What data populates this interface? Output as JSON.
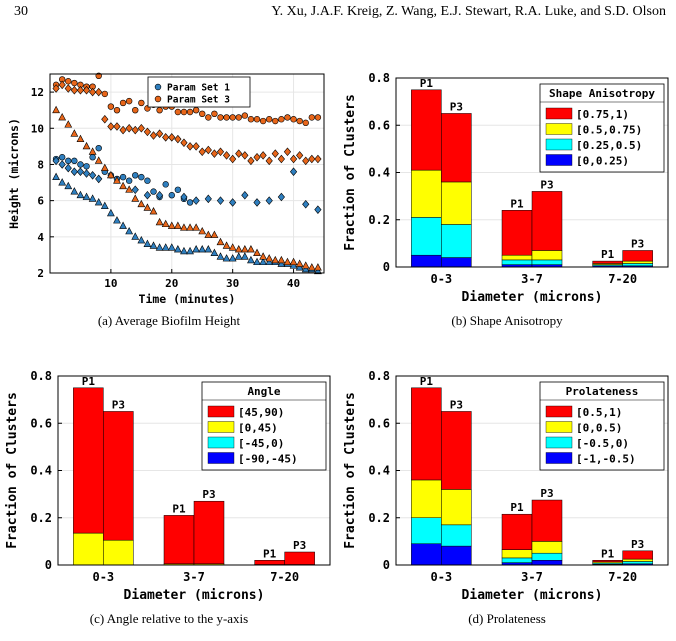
{
  "header": {
    "page_number": "30",
    "authors": "Y. Xu, J.A.F. Kreig, Z. Wang, E.J. Stewart, R.A. Luke, and S.D. Olson"
  },
  "captions": {
    "a": "(a) Average Biofilm Height",
    "b": "(b) Shape Anisotropy",
    "c": "(c) Angle relative to the y-axis",
    "d": "(d) Prolateness"
  },
  "colors": {
    "red": "#ff0000",
    "yellow": "#ffff00",
    "cyan": "#00ffff",
    "blue": "#0000ff",
    "param1": "#2f7fbf",
    "param3": "#e8661a"
  },
  "chart_data": [
    {
      "id": "a",
      "type": "scatter",
      "xlabel": "Time (minutes)",
      "ylabel": "Height (microns)",
      "xlim": [
        0,
        45
      ],
      "ylim": [
        2,
        13
      ],
      "xticks": [
        "10",
        "20",
        "30",
        "40"
      ],
      "yticks": [
        "2",
        "4",
        "6",
        "8",
        "10",
        "12"
      ],
      "legend": [
        "Param Set 1",
        "Param Set 3"
      ],
      "legend_position": "top-right",
      "grid": true,
      "series": [
        {
          "name": "Param Set 1",
          "marker": "circle",
          "color": "#2f7fbf",
          "x": [
            1,
            2,
            3,
            4,
            5,
            6,
            7,
            8,
            9,
            10,
            11,
            12,
            13,
            14,
            15,
            16,
            17,
            18,
            19,
            20,
            21,
            22,
            23
          ],
          "y": [
            8.3,
            8.4,
            8.2,
            8.2,
            8.0,
            7.9,
            8.4,
            8.9,
            7.6,
            7.4,
            7.2,
            7.3,
            7.1,
            7.4,
            7.3,
            7.1,
            6.5,
            6.2,
            6.9,
            6.3,
            6.6,
            6.1,
            5.9
          ]
        },
        {
          "name": "Param Set 1",
          "marker": "diamond",
          "color": "#2f7fbf",
          "x": [
            1,
            2,
            3,
            4,
            5,
            6,
            7,
            8,
            14,
            16,
            18,
            22,
            24,
            26,
            28,
            30,
            32,
            34,
            36,
            38,
            40,
            42,
            44
          ],
          "y": [
            8.2,
            8.0,
            7.8,
            7.6,
            7.6,
            7.5,
            7.4,
            7.2,
            6.6,
            6.3,
            6.3,
            6.2,
            6.0,
            6.1,
            6.0,
            5.9,
            6.3,
            5.9,
            6.0,
            6.2,
            7.6,
            5.8,
            5.5
          ]
        },
        {
          "name": "",
          "marker": "triangle",
          "color": "#2f7fbf",
          "x": [
            1,
            2,
            3,
            4,
            5,
            6,
            7,
            8,
            9,
            10,
            11,
            12,
            13,
            14,
            15,
            16,
            17,
            18,
            19,
            20,
            21,
            22,
            23,
            24,
            25,
            26,
            27,
            28,
            29,
            30,
            31,
            32,
            33,
            34,
            35,
            36,
            37,
            38,
            39,
            40,
            41,
            42,
            43,
            44
          ],
          "y": [
            7.3,
            7.0,
            6.8,
            6.5,
            6.3,
            6.2,
            6.1,
            5.9,
            5.7,
            5.3,
            4.9,
            4.6,
            4.3,
            4.0,
            3.8,
            3.6,
            3.5,
            3.4,
            3.4,
            3.4,
            3.3,
            3.2,
            3.2,
            3.3,
            3.3,
            3.3,
            3.1,
            2.9,
            2.8,
            2.8,
            2.9,
            2.9,
            2.7,
            2.6,
            2.6,
            2.6,
            2.6,
            2.5,
            2.5,
            2.4,
            2.3,
            2.2,
            2.2,
            2.1
          ]
        },
        {
          "name": "Param Set 3",
          "marker": "circle",
          "color": "#e8661a",
          "x": [
            1,
            2,
            3,
            4,
            5,
            6,
            7,
            8,
            9,
            10,
            11,
            12,
            13,
            14,
            15,
            16,
            17,
            18,
            19,
            20,
            21,
            22,
            23,
            24,
            25,
            26,
            27,
            28,
            29,
            30,
            31,
            32,
            33,
            34,
            35,
            36,
            37,
            38,
            39,
            40,
            41,
            42,
            43,
            44
          ],
          "y": [
            12.4,
            12.7,
            12.6,
            12.5,
            12.4,
            12.3,
            12.3,
            12.9,
            11.9,
            11.2,
            11.0,
            11.4,
            11.5,
            11.0,
            11.4,
            11.1,
            11.3,
            11.0,
            11.2,
            11.2,
            10.9,
            10.9,
            10.9,
            11.0,
            10.8,
            10.6,
            10.8,
            10.6,
            10.6,
            10.6,
            10.6,
            10.7,
            10.5,
            10.5,
            10.4,
            10.5,
            10.4,
            10.5,
            10.6,
            10.5,
            10.4,
            10.3,
            10.6,
            10.6
          ]
        },
        {
          "name": "Param Set 3",
          "marker": "diamond",
          "color": "#e8661a",
          "x": [
            1,
            2,
            3,
            4,
            5,
            6,
            7,
            8,
            9,
            10,
            11,
            12,
            13,
            14,
            15,
            16,
            17,
            18,
            19,
            20,
            21,
            22,
            23,
            24,
            25,
            26,
            27,
            28,
            29,
            30,
            31,
            32,
            33,
            34,
            35,
            36,
            37,
            38,
            39,
            40,
            41,
            42,
            43,
            44
          ],
          "y": [
            12.2,
            12.4,
            12.2,
            12.1,
            12.1,
            12.1,
            12.0,
            12.0,
            10.5,
            10.1,
            10.1,
            9.9,
            10.0,
            9.9,
            10.0,
            9.8,
            9.6,
            9.7,
            9.5,
            9.5,
            9.4,
            9.2,
            9.0,
            9.0,
            8.7,
            8.8,
            8.6,
            8.7,
            8.5,
            8.3,
            8.6,
            8.5,
            8.2,
            8.4,
            8.5,
            8.2,
            8.6,
            8.3,
            8.7,
            8.3,
            8.5,
            8.2,
            8.3,
            8.3
          ]
        },
        {
          "name": "",
          "marker": "triangle",
          "color": "#e8661a",
          "x": [
            1,
            2,
            3,
            4,
            5,
            6,
            7,
            8,
            9,
            10,
            11,
            12,
            13,
            14,
            15,
            16,
            17,
            18,
            19,
            20,
            21,
            22,
            23,
            24,
            25,
            26,
            27,
            28,
            29,
            30,
            31,
            32,
            33,
            34,
            35,
            36,
            37,
            38,
            39,
            40,
            41,
            42,
            43,
            44
          ],
          "y": [
            11.0,
            10.6,
            10.2,
            9.7,
            9.4,
            9.0,
            8.7,
            8.2,
            7.8,
            7.4,
            7.1,
            6.8,
            6.6,
            6.1,
            5.8,
            5.6,
            5.4,
            4.8,
            4.7,
            4.6,
            4.6,
            4.5,
            4.5,
            4.5,
            4.3,
            4.1,
            4.1,
            3.7,
            3.5,
            3.4,
            3.3,
            3.3,
            3.3,
            3.1,
            2.9,
            2.8,
            2.7,
            2.7,
            2.6,
            2.6,
            2.5,
            2.4,
            2.3,
            2.3
          ]
        }
      ]
    },
    {
      "id": "b",
      "type": "bar",
      "stacked": true,
      "xlabel": "Diameter (microns)",
      "ylabel": "Fraction of Clusters",
      "ylim": [
        0,
        0.8
      ],
      "yticks": [
        "0",
        "0.2",
        "0.4",
        "0.6",
        "0.8"
      ],
      "categories": [
        "0-3",
        "3-7",
        "7-20"
      ],
      "bar_labels": [
        "P1",
        "P3"
      ],
      "legend_title": "Shape Anisotropy",
      "legend_position": "top-right",
      "series": [
        {
          "name": "[0,0.25)",
          "color": "#0000ff",
          "P1": [
            0.05,
            0.01,
            0.005
          ],
          "P3": [
            0.04,
            0.01,
            0.005
          ]
        },
        {
          "name": "[0.25,0.5)",
          "color": "#00ffff",
          "P1": [
            0.16,
            0.02,
            0.005
          ],
          "P3": [
            0.14,
            0.02,
            0.01
          ]
        },
        {
          "name": "[0.5,0.75)",
          "color": "#ffff00",
          "P1": [
            0.2,
            0.02,
            0.005
          ],
          "P3": [
            0.18,
            0.04,
            0.01
          ]
        },
        {
          "name": "[0.75,1)",
          "color": "#ff0000",
          "P1": [
            0.34,
            0.19,
            0.01
          ],
          "P3": [
            0.29,
            0.25,
            0.045
          ]
        }
      ]
    },
    {
      "id": "c",
      "type": "bar",
      "stacked": true,
      "xlabel": "Diameter (microns)",
      "ylabel": "Fraction of Clusters",
      "ylim": [
        0,
        0.8
      ],
      "yticks": [
        "0",
        "0.2",
        "0.4",
        "0.6",
        "0.8"
      ],
      "categories": [
        "0-3",
        "3-7",
        "7-20"
      ],
      "bar_labels": [
        "P1",
        "P3"
      ],
      "legend_title": "Angle",
      "legend_position": "top-right",
      "series": [
        {
          "name": "[-90,-45)",
          "color": "#0000ff",
          "P1": [
            0,
            0,
            0
          ],
          "P3": [
            0,
            0,
            0
          ]
        },
        {
          "name": "[-45,0)",
          "color": "#00ffff",
          "P1": [
            0,
            0,
            0
          ],
          "P3": [
            0,
            0,
            0
          ]
        },
        {
          "name": "[0,45)",
          "color": "#ffff00",
          "P1": [
            0.135,
            0.005,
            0.002
          ],
          "P3": [
            0.105,
            0.005,
            0.002
          ]
        },
        {
          "name": "[45,90)",
          "color": "#ff0000",
          "P1": [
            0.615,
            0.205,
            0.018
          ],
          "P3": [
            0.545,
            0.265,
            0.053
          ]
        }
      ]
    },
    {
      "id": "d",
      "type": "bar",
      "stacked": true,
      "xlabel": "Diameter (microns)",
      "ylabel": "Fraction of Clusters",
      "ylim": [
        0,
        0.8
      ],
      "yticks": [
        "0",
        "0.2",
        "0.4",
        "0.6",
        "0.8"
      ],
      "categories": [
        "0-3",
        "3-7",
        "7-20"
      ],
      "bar_labels": [
        "P1",
        "P3"
      ],
      "legend_title": "Prolateness",
      "legend_position": "top-right",
      "series": [
        {
          "name": "[-1,-0.5)",
          "color": "#0000ff",
          "P1": [
            0.09,
            0.01,
            0.003
          ],
          "P3": [
            0.08,
            0.02,
            0.005
          ]
        },
        {
          "name": "[-0.5,0)",
          "color": "#00ffff",
          "P1": [
            0.11,
            0.02,
            0.005
          ],
          "P3": [
            0.09,
            0.03,
            0.01
          ]
        },
        {
          "name": "[0,0.5)",
          "color": "#ffff00",
          "P1": [
            0.16,
            0.035,
            0.005
          ],
          "P3": [
            0.15,
            0.05,
            0.01
          ]
        },
        {
          "name": "[0.5,1)",
          "color": "#ff0000",
          "P1": [
            0.39,
            0.15,
            0.007
          ],
          "P3": [
            0.33,
            0.175,
            0.035
          ]
        }
      ]
    }
  ]
}
